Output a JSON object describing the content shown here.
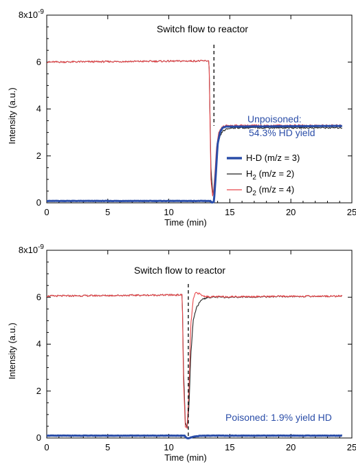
{
  "chart_data": [
    {
      "type": "line",
      "ylabel": "Intensity (a.u.)",
      "xlabel": "Time (min)",
      "y_exponent_label": "8x10",
      "y_exponent_power": "-9",
      "xlim": [
        0,
        25
      ],
      "ylim": [
        0,
        8
      ],
      "xticks": [
        "0",
        "5",
        "10",
        "15",
        "20",
        "25"
      ],
      "yticks": [
        "0",
        "2",
        "4",
        "6",
        ""
      ],
      "grid": false,
      "annotations": {
        "switch": "Switch flow to reactor",
        "result_line1": "Unpoisoned:",
        "result_line2": "54.3% HD yield"
      },
      "switch_x": 13.7,
      "legend": {
        "placement": "right",
        "items": [
          {
            "text": "H-D (m/z = 3)",
            "color": "#2a4da8"
          },
          {
            "main": "H",
            "sub": "2",
            "rest": " (m/z = 2)",
            "color": "#222222"
          },
          {
            "main": "D",
            "sub": "2",
            "rest": " (m/z = 4)",
            "color": "#e8464a"
          }
        ]
      },
      "series": [
        {
          "key": "HD",
          "color": "#2a4da8",
          "x": [
            0,
            13.4,
            13.55,
            13.7,
            13.85,
            14.0,
            14.2,
            14.4,
            14.7,
            15,
            24.2
          ],
          "y": [
            0.08,
            0.08,
            0.0,
            0.05,
            1.2,
            2.5,
            3.0,
            3.2,
            3.25,
            3.25,
            3.28
          ]
        },
        {
          "key": "H2",
          "color": "#222222",
          "x": [
            0,
            13.3,
            13.45,
            13.6,
            13.75,
            13.9,
            14.1,
            14.4,
            14.8,
            15.2,
            24.2
          ],
          "y": [
            6.0,
            6.05,
            1.5,
            0.35,
            0.6,
            1.8,
            2.7,
            3.05,
            3.15,
            3.2,
            3.2
          ]
        },
        {
          "key": "D2",
          "color": "#e8464a",
          "x": [
            0,
            13.3,
            13.45,
            13.6,
            13.75,
            13.9,
            14.1,
            14.4,
            14.8,
            15.2,
            24.2
          ],
          "y": [
            6.0,
            6.05,
            1.0,
            0.2,
            1.0,
            2.3,
            3.0,
            3.25,
            3.3,
            3.3,
            3.3
          ]
        }
      ]
    },
    {
      "type": "line",
      "ylabel": "Intensity (a.u.)",
      "xlabel": "Time (min)",
      "y_exponent_label": "8x10",
      "y_exponent_power": "-9",
      "xlim": [
        0,
        25
      ],
      "ylim": [
        0,
        8
      ],
      "xticks": [
        "0",
        "5",
        "10",
        "15",
        "20",
        "25"
      ],
      "yticks": [
        "0",
        "2",
        "4",
        "6",
        ""
      ],
      "grid": false,
      "annotations": {
        "switch": "Switch flow to reactor",
        "result_line1": "Poisoned: 1.9% yield HD"
      },
      "switch_x": 11.6,
      "series": [
        {
          "key": "HD",
          "color": "#2a4da8",
          "x": [
            0,
            11.3,
            11.45,
            11.6,
            11.8,
            12.0,
            12.5,
            13,
            24.2
          ],
          "y": [
            0.1,
            0.1,
            0.0,
            -0.02,
            0.02,
            0.05,
            0.09,
            0.1,
            0.1
          ]
        },
        {
          "key": "H2",
          "color": "#222222",
          "x": [
            0,
            11.1,
            11.2,
            11.35,
            11.5,
            11.65,
            11.8,
            12.0,
            12.3,
            12.7,
            13.2,
            24.2
          ],
          "y": [
            6.05,
            6.1,
            3.0,
            0.7,
            0.4,
            1.3,
            3.5,
            5.0,
            5.6,
            5.9,
            6.0,
            6.05
          ]
        },
        {
          "key": "D2",
          "color": "#e8464a",
          "x": [
            0,
            11.1,
            11.2,
            11.35,
            11.5,
            11.65,
            11.8,
            12.0,
            12.2,
            12.5,
            12.8,
            13.3,
            24.2
          ],
          "y": [
            6.05,
            6.1,
            2.5,
            0.5,
            0.4,
            2.0,
            4.8,
            5.9,
            6.2,
            6.15,
            6.05,
            6.02,
            6.05
          ]
        }
      ]
    }
  ]
}
